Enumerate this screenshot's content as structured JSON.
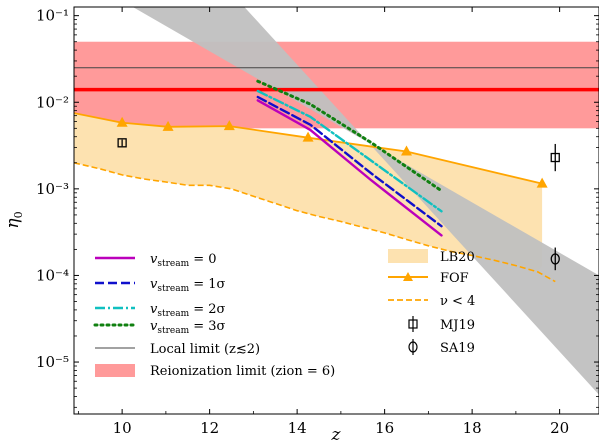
{
  "chart_data": {
    "type": "line",
    "xlabel": "z",
    "ylabel": "η0",
    "scale": {
      "x": "linear",
      "y": "log"
    },
    "xlim": [
      8.9,
      20.9
    ],
    "ylim_log10": [
      -5.6,
      -0.9
    ],
    "x_ticks": [
      10,
      12,
      14,
      16,
      18,
      20
    ],
    "x_tick_labels": [
      "10",
      "12",
      "14",
      "16",
      "18",
      "20"
    ],
    "y_ticks_log10": [
      -5,
      -4,
      -3,
      -2,
      -1
    ],
    "y_tick_labels": [
      "10⁻⁵",
      "10⁻⁴",
      "10⁻³",
      "10⁻²",
      "10⁻¹"
    ],
    "grid": false,
    "colors": {
      "v0": "#bb00bb",
      "v1": "#1010cc",
      "v2": "#10c0c0",
      "v3": "#108010",
      "local": "#444444",
      "reion_band": "#ff9a9a",
      "reion_line": "#ff0000",
      "lb20": "#fde2b0",
      "fof": "#ffa500",
      "gray_band": "#c0c0c0",
      "marker": "#000000"
    },
    "reionization_band": {
      "y_low": 0.005,
      "y_high": 0.05,
      "y_line": 0.014
    },
    "local_limit": {
      "y": 0.025
    },
    "gray_band": {
      "upper": [
        [
          8.9,
          0.31
        ],
        [
          20.9,
          0.0001
        ]
      ],
      "lower": [
        [
          10.9,
          1.4
        ],
        [
          20.9,
          4.2e-06
        ]
      ]
    },
    "series": [
      {
        "key": "v0",
        "style": "solid",
        "x": [
          13.1,
          14.3,
          15.7,
          17.3
        ],
        "y": [
          0.0105,
          0.0048,
          0.00125,
          0.00029
        ]
      },
      {
        "key": "v1",
        "style": "dashed",
        "x": [
          13.1,
          14.3,
          15.7,
          17.3
        ],
        "y": [
          0.0115,
          0.0055,
          0.0015,
          0.00037
        ]
      },
      {
        "key": "v2",
        "style": "dashdot",
        "x": [
          13.1,
          14.3,
          15.7,
          17.3
        ],
        "y": [
          0.0135,
          0.0068,
          0.0021,
          0.00055
        ]
      },
      {
        "key": "v3",
        "style": "dotted",
        "x": [
          13.1,
          14.3,
          15.7,
          17.3
        ],
        "y": [
          0.0175,
          0.0095,
          0.0034,
          0.00095
        ]
      }
    ],
    "fof": {
      "x": [
        8.9,
        10.0,
        11.05,
        12.45,
        14.25,
        16.5,
        19.6
      ],
      "y": [
        0.0075,
        0.0058,
        0.0052,
        0.0053,
        0.0039,
        0.0027,
        0.00115
      ]
    },
    "nu_lt4": {
      "x": [
        8.9,
        9.5,
        10.0,
        10.5,
        11.0,
        11.5,
        12.0,
        12.5,
        13.0,
        13.5,
        14.0,
        14.5,
        15.0,
        15.5,
        16.0,
        16.5,
        17.0,
        17.5,
        18.0,
        18.5,
        19.0,
        19.5,
        19.9
      ],
      "y": [
        0.002,
        0.0017,
        0.00145,
        0.0013,
        0.0012,
        0.0011,
        0.0011,
        0.001,
        0.00082,
        0.00068,
        0.00056,
        0.00048,
        0.00042,
        0.00036,
        0.00031,
        0.00026,
        0.00022,
        0.00019,
        0.00017,
        0.00015,
        0.00013,
        0.00011,
        8.5e-05
      ]
    },
    "lb20_band": {
      "x": [
        8.9,
        10.0,
        11.05,
        12.45,
        14.25,
        16.5,
        19.6,
        19.6
      ]
    },
    "mj19": {
      "points": [
        {
          "x": 10.0,
          "y": 0.0034,
          "err_low": 0.0031,
          "err_high": 0.0037
        },
        {
          "x": 19.9,
          "y": 0.0023,
          "err_low": 0.0016,
          "err_high": 0.0033
        }
      ]
    },
    "sa19": {
      "points": [
        {
          "x": 19.9,
          "y": 0.000155,
          "err_low": 0.000115,
          "err_high": 0.00021
        }
      ]
    },
    "legend": {
      "v0_label_base": "v",
      "v0_label_sub": "stream",
      "v0_label_eq": " = 0",
      "v1_label_eq": " = 1σ",
      "v2_label_eq": " = 2σ",
      "v3_label_eq": " = 3σ",
      "local_label": "Local limit (z≲2)",
      "reion_label": "Reionization limit (zion = 6)",
      "lb20_label": "LB20",
      "fof_label": "FOF",
      "nu_label": "ν < 4",
      "mj19_label": "MJ19",
      "sa19_label": "SA19"
    }
  }
}
